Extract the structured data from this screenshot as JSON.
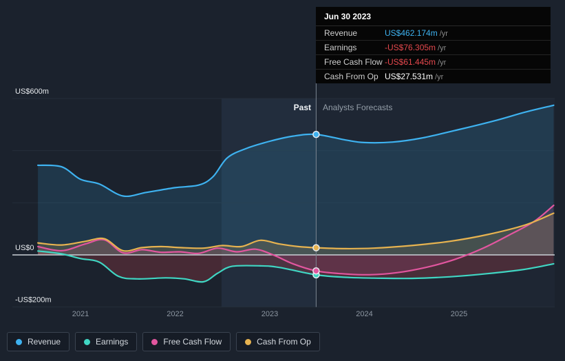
{
  "tooltip": {
    "date": "Jun 30 2023",
    "rows": [
      {
        "label": "Revenue",
        "value": "US$462.174m",
        "suffix": "/yr",
        "color": "#3eb2f0"
      },
      {
        "label": "Earnings",
        "value": "-US$76.305m",
        "suffix": "/yr",
        "color": "#e5484d"
      },
      {
        "label": "Free Cash Flow",
        "value": "-US$61.445m",
        "suffix": "/yr",
        "color": "#e5484d"
      },
      {
        "label": "Cash From Op",
        "value": "US$27.531m",
        "suffix": "/yr",
        "color": "#ffffff"
      }
    ]
  },
  "labels": {
    "past": "Past",
    "forecast": "Analysts Forecasts"
  },
  "axis": {
    "y_ticks": [
      {
        "value": 600,
        "label": "US$600m"
      },
      {
        "value": 0,
        "label": "US$0"
      },
      {
        "value": -200,
        "label": "-US$200m"
      }
    ],
    "x_ticks": [
      2021,
      2022,
      2023,
      2024,
      2025
    ],
    "gridline_values": [
      600,
      400,
      200,
      -200
    ]
  },
  "legend": [
    {
      "label": "Revenue",
      "color": "#3eb2f0"
    },
    {
      "label": "Earnings",
      "color": "#40d6c3"
    },
    {
      "label": "Free Cash Flow",
      "color": "#e2569f"
    },
    {
      "label": "Cash From Op",
      "color": "#e7b350"
    }
  ],
  "chart_data": {
    "type": "line",
    "title": "Earnings and Revenue Growth Forecast (US$ millions per year)",
    "x_unit": "year",
    "xlim": [
      2020.5,
      2026.0
    ],
    "ylim": [
      -200,
      600
    ],
    "divider_x": 2023.49,
    "highlight_band": [
      2022.49,
      2023.49
    ],
    "grid": true,
    "legend_position": "bottom-left",
    "series": [
      {
        "id": "revenue",
        "name": "Revenue",
        "color": "#3eb2f0",
        "fill": "rgba(62,178,240,0.15)",
        "marker_value": 462.174,
        "points": [
          [
            2020.55,
            344
          ],
          [
            2020.8,
            338
          ],
          [
            2021.0,
            290
          ],
          [
            2021.2,
            272
          ],
          [
            2021.45,
            226
          ],
          [
            2021.7,
            240
          ],
          [
            2022.0,
            258
          ],
          [
            2022.25,
            268
          ],
          [
            2022.4,
            300
          ],
          [
            2022.55,
            372
          ],
          [
            2022.75,
            408
          ],
          [
            2023.0,
            436
          ],
          [
            2023.25,
            456
          ],
          [
            2023.49,
            462.174
          ],
          [
            2023.8,
            441
          ],
          [
            2024.0,
            431
          ],
          [
            2024.3,
            433
          ],
          [
            2024.6,
            448
          ],
          [
            2025.0,
            481
          ],
          [
            2025.4,
            517
          ],
          [
            2025.7,
            548
          ],
          [
            2026.0,
            574
          ]
        ]
      },
      {
        "id": "earnings",
        "name": "Earnings",
        "color": "#40d6c3",
        "fill": "rgba(226,72,82,0.22)",
        "marker_value": -76.305,
        "points": [
          [
            2020.55,
            15
          ],
          [
            2020.8,
            4
          ],
          [
            2021.0,
            -14
          ],
          [
            2021.2,
            -28
          ],
          [
            2021.4,
            -82
          ],
          [
            2021.6,
            -92
          ],
          [
            2021.9,
            -88
          ],
          [
            2022.1,
            -92
          ],
          [
            2022.3,
            -103
          ],
          [
            2022.45,
            -70
          ],
          [
            2022.6,
            -44
          ],
          [
            2022.9,
            -42
          ],
          [
            2023.1,
            -48
          ],
          [
            2023.49,
            -76.305
          ],
          [
            2023.8,
            -86
          ],
          [
            2024.1,
            -89
          ],
          [
            2024.5,
            -90
          ],
          [
            2024.9,
            -84
          ],
          [
            2025.3,
            -72
          ],
          [
            2025.7,
            -55
          ],
          [
            2026.0,
            -34
          ]
        ]
      },
      {
        "id": "free-cash-flow",
        "name": "Free Cash Flow",
        "color": "#e2569f",
        "fill": "rgba(224,86,160,0.15)",
        "marker_value": -61.445,
        "points": [
          [
            2020.55,
            32
          ],
          [
            2020.8,
            16
          ],
          [
            2021.05,
            42
          ],
          [
            2021.25,
            58
          ],
          [
            2021.45,
            8
          ],
          [
            2021.65,
            20
          ],
          [
            2021.85,
            10
          ],
          [
            2022.05,
            12
          ],
          [
            2022.25,
            6
          ],
          [
            2022.45,
            26
          ],
          [
            2022.65,
            12
          ],
          [
            2022.85,
            22
          ],
          [
            2023.05,
            -2
          ],
          [
            2023.25,
            -35
          ],
          [
            2023.49,
            -61.445
          ],
          [
            2023.75,
            -72
          ],
          [
            2024.05,
            -76
          ],
          [
            2024.35,
            -68
          ],
          [
            2024.65,
            -48
          ],
          [
            2024.95,
            -18
          ],
          [
            2025.25,
            25
          ],
          [
            2025.55,
            80
          ],
          [
            2025.8,
            130
          ],
          [
            2026.0,
            190
          ]
        ]
      },
      {
        "id": "cash-from-op",
        "name": "Cash From Op",
        "color": "#e7b350",
        "fill": "rgba(231,179,80,0.18)",
        "marker_value": 27.531,
        "points": [
          [
            2020.55,
            46
          ],
          [
            2020.8,
            38
          ],
          [
            2021.05,
            52
          ],
          [
            2021.25,
            62
          ],
          [
            2021.45,
            16
          ],
          [
            2021.65,
            28
          ],
          [
            2021.85,
            32
          ],
          [
            2022.05,
            28
          ],
          [
            2022.3,
            26
          ],
          [
            2022.5,
            36
          ],
          [
            2022.7,
            32
          ],
          [
            2022.9,
            56
          ],
          [
            2023.1,
            42
          ],
          [
            2023.3,
            32
          ],
          [
            2023.49,
            27.531
          ],
          [
            2023.8,
            24
          ],
          [
            2024.1,
            26
          ],
          [
            2024.5,
            36
          ],
          [
            2024.9,
            52
          ],
          [
            2025.3,
            78
          ],
          [
            2025.7,
            115
          ],
          [
            2026.0,
            160
          ]
        ]
      }
    ]
  }
}
